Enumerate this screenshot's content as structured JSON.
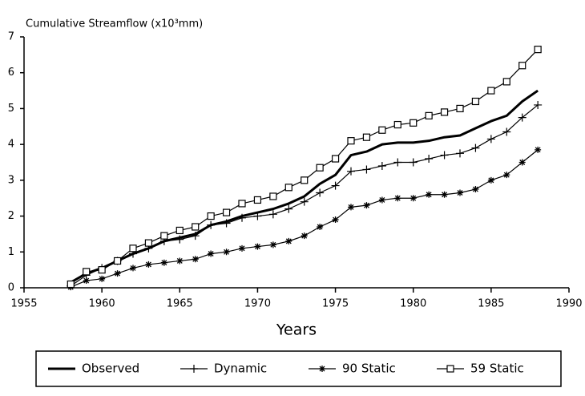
{
  "chart_data": {
    "type": "line",
    "title": "Cumulative Streamflow (x10³mm)",
    "xlabel": "Years",
    "x": [
      1958,
      1959,
      1960,
      1961,
      1962,
      1963,
      1964,
      1965,
      1966,
      1967,
      1968,
      1969,
      1970,
      1971,
      1972,
      1973,
      1974,
      1975,
      1976,
      1977,
      1978,
      1979,
      1980,
      1981,
      1982,
      1983,
      1984,
      1985,
      1986,
      1987,
      1988
    ],
    "series": [
      {
        "name": "Observed",
        "color": "#000000",
        "line_width": 3,
        "marker": "none",
        "values": [
          0.15,
          0.4,
          0.55,
          0.75,
          0.95,
          1.1,
          1.3,
          1.4,
          1.5,
          1.75,
          1.85,
          2.0,
          2.1,
          2.2,
          2.35,
          2.55,
          2.9,
          3.15,
          3.7,
          3.8,
          4.0,
          4.05,
          4.05,
          4.1,
          4.2,
          4.25,
          4.45,
          4.65,
          4.8,
          5.2,
          5.5
        ]
      },
      {
        "name": "Dynamic",
        "color": "#000000",
        "line_width": 1.2,
        "marker": "plus",
        "values": [
          0.05,
          0.35,
          0.55,
          0.75,
          0.95,
          1.1,
          1.3,
          1.35,
          1.45,
          1.75,
          1.8,
          1.95,
          2.0,
          2.05,
          2.2,
          2.4,
          2.65,
          2.85,
          3.25,
          3.3,
          3.4,
          3.5,
          3.5,
          3.6,
          3.7,
          3.75,
          3.9,
          4.15,
          4.35,
          4.75,
          5.1
        ]
      },
      {
        "name": "90 Static",
        "color": "#000000",
        "line_width": 1.2,
        "marker": "star",
        "values": [
          0.02,
          0.2,
          0.25,
          0.4,
          0.55,
          0.65,
          0.7,
          0.75,
          0.8,
          0.95,
          1.0,
          1.1,
          1.15,
          1.2,
          1.3,
          1.45,
          1.7,
          1.9,
          2.25,
          2.3,
          2.45,
          2.5,
          2.5,
          2.6,
          2.6,
          2.65,
          2.75,
          3.0,
          3.15,
          3.5,
          3.85
        ]
      },
      {
        "name": "59 Static",
        "color": "#000000",
        "line_width": 1.2,
        "marker": "square",
        "values": [
          0.1,
          0.45,
          0.5,
          0.75,
          1.1,
          1.25,
          1.45,
          1.6,
          1.7,
          2.0,
          2.1,
          2.35,
          2.45,
          2.55,
          2.8,
          3.0,
          3.35,
          3.6,
          4.1,
          4.2,
          4.4,
          4.55,
          4.6,
          4.8,
          4.9,
          5.0,
          5.2,
          5.5,
          5.75,
          6.2,
          6.65
        ]
      }
    ],
    "xlim": [
      1955,
      1990
    ],
    "xticks": [
      1955,
      1960,
      1965,
      1970,
      1975,
      1980,
      1985,
      1990
    ],
    "ylim": [
      0,
      7
    ],
    "yticks": [
      0,
      1,
      2,
      3,
      4,
      5,
      6,
      7
    ],
    "grid": false,
    "legend": "bottom"
  }
}
